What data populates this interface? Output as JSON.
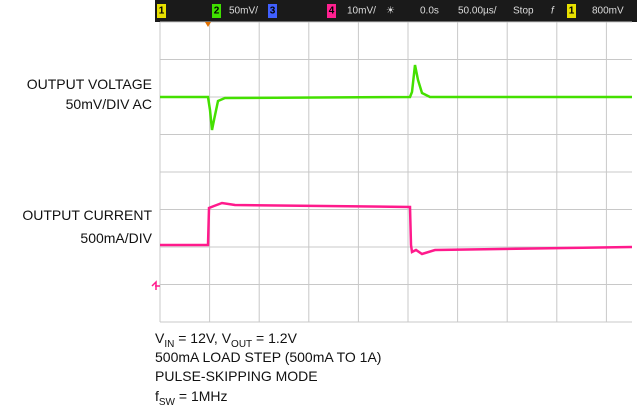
{
  "status_bar": {
    "ch1": "1",
    "ch2": "2",
    "ch2_scale": "50mV/",
    "ch3": "3",
    "ch4": "4",
    "ch4_scale": "10mV/",
    "time_offset": "0.0s",
    "time_scale": "50.00µs/",
    "run_state": "Stop",
    "trigger_edge": "f",
    "trigger_ch": "1",
    "trigger_level": "800mV"
  },
  "labels": {
    "voltage_title": "OUTPUT VOLTAGE",
    "voltage_scale": "50mV/DIV AC",
    "current_title": "OUTPUT CURRENT",
    "current_scale": "500mA/DIV"
  },
  "conditions": {
    "line1": {
      "v": "V",
      "v_in_sub": "IN",
      "v_in_rest": " = 12V, V",
      "v_out_sub": "OUT",
      "v_out_rest": " = 1.2V"
    },
    "line2": "500mA LOAD STEP (500mA TO 1A)",
    "line3": "PULSE-SKIPPING MODE",
    "line4": {
      "f": "f",
      "sub": "SW",
      "rest": " = 1MHz"
    }
  }
}
